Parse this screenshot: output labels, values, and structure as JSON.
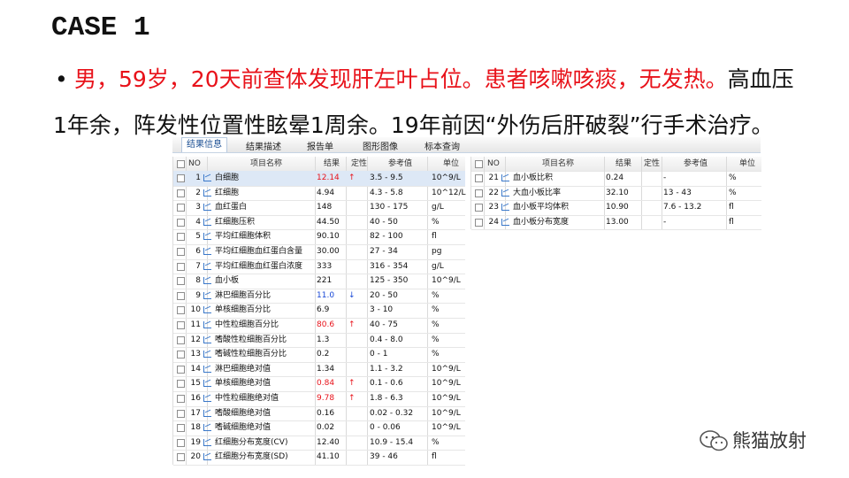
{
  "slide": {
    "title": "CASE 1",
    "bullet": {
      "highlight": "男，59岁，20天前查体发现肝左叶占位。患者咳嗽咳痰，无发热。",
      "rest": "高血压1年余，阵发性位置性眩晕1周余。19年前因“外伤后肝破裂”行手术治疗。"
    },
    "watermark": "熊猫放射"
  },
  "tabs": [
    "结果信息",
    "结果描述",
    "报告单",
    "图形图像",
    "标本查询"
  ],
  "columns": [
    "NO",
    "项目名称",
    "结果",
    "定性",
    "参考值",
    "单位"
  ],
  "left_table": {
    "rows": [
      {
        "no": "1",
        "name": "白细胞",
        "result": "12.14",
        "flag": "↑",
        "ref": "3.5 - 9.5",
        "unit": "10^9/L"
      },
      {
        "no": "2",
        "name": "红细胞",
        "result": "4.94",
        "ref": "4.3 - 5.8",
        "unit": "10^12/L"
      },
      {
        "no": "3",
        "name": "血红蛋白",
        "result": "148",
        "ref": "130 - 175",
        "unit": "g/L"
      },
      {
        "no": "4",
        "name": "红细胞压积",
        "result": "44.50",
        "ref": "40 - 50",
        "unit": "%"
      },
      {
        "no": "5",
        "name": "平均红细胞体积",
        "result": "90.10",
        "ref": "82 - 100",
        "unit": "fl"
      },
      {
        "no": "6",
        "name": "平均红细胞血红蛋白含量",
        "result": "30.00",
        "ref": "27 - 34",
        "unit": "pg"
      },
      {
        "no": "7",
        "name": "平均红细胞血红蛋白浓度",
        "result": "333",
        "ref": "316 - 354",
        "unit": "g/L"
      },
      {
        "no": "8",
        "name": "血小板",
        "result": "221",
        "ref": "125 - 350",
        "unit": "10^9/L"
      },
      {
        "no": "9",
        "name": "淋巴细胞百分比",
        "result": "11.0",
        "flag": "↓",
        "ref": "20 - 50",
        "unit": "%"
      },
      {
        "no": "10",
        "name": "单核细胞百分比",
        "result": "6.9",
        "ref": "3 - 10",
        "unit": "%"
      },
      {
        "no": "11",
        "name": "中性粒细胞百分比",
        "result": "80.6",
        "flag": "↑",
        "ref": "40 - 75",
        "unit": "%"
      },
      {
        "no": "12",
        "name": "嗜酸性粒细胞百分比",
        "result": "1.3",
        "ref": "0.4 - 8.0",
        "unit": "%"
      },
      {
        "no": "13",
        "name": "嗜碱性粒细胞百分比",
        "result": "0.2",
        "ref": "0 - 1",
        "unit": "%"
      },
      {
        "no": "14",
        "name": "淋巴细胞绝对值",
        "result": "1.34",
        "ref": "1.1 - 3.2",
        "unit": "10^9/L"
      },
      {
        "no": "15",
        "name": "单核细胞绝对值",
        "result": "0.84",
        "flag": "↑",
        "ref": "0.1 - 0.6",
        "unit": "10^9/L"
      },
      {
        "no": "16",
        "name": "中性粒细胞绝对值",
        "result": "9.78",
        "flag": "↑",
        "ref": "1.8 - 6.3",
        "unit": "10^9/L"
      },
      {
        "no": "17",
        "name": "嗜酸细胞绝对值",
        "result": "0.16",
        "ref": "0.02 - 0.32",
        "unit": "10^9/L"
      },
      {
        "no": "18",
        "name": "嗜碱细胞绝对值",
        "result": "0.02",
        "ref": "0 - 0.06",
        "unit": "10^9/L"
      },
      {
        "no": "19",
        "name": "红细胞分布宽度(CV)",
        "result": "12.40",
        "ref": "10.9 - 15.4",
        "unit": "%"
      },
      {
        "no": "20",
        "name": "红细胞分布宽度(SD)",
        "result": "41.10",
        "ref": "39 - 46",
        "unit": "fl"
      }
    ]
  },
  "right_table": {
    "rows": [
      {
        "no": "21",
        "name": "血小板比积",
        "result": "0.24",
        "ref": "-",
        "unit": "%"
      },
      {
        "no": "22",
        "name": "大血小板比率",
        "result": "32.10",
        "ref": "13 - 43",
        "unit": "%"
      },
      {
        "no": "23",
        "name": "血小板平均体积",
        "result": "10.90",
        "ref": "7.6 - 13.2",
        "unit": "fl"
      },
      {
        "no": "24",
        "name": "血小板分布宽度",
        "result": "13.00",
        "ref": "-",
        "unit": "fl"
      }
    ]
  }
}
